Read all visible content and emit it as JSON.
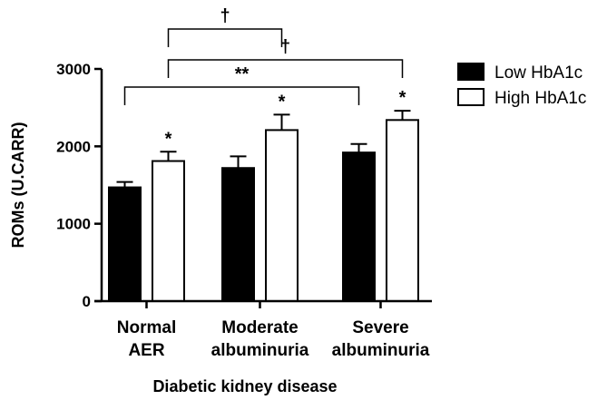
{
  "chart_data": {
    "type": "bar",
    "title": "",
    "xlabel": "Diabetic kidney disease",
    "ylabel": "ROMs (U.CARR)",
    "ylim": [
      0,
      3000
    ],
    "yticks": [
      0,
      1000,
      2000,
      3000
    ],
    "categories": [
      [
        "Normal",
        "AER"
      ],
      [
        "Moderate",
        "albuminuria"
      ],
      [
        "Severe",
        "albuminuria"
      ]
    ],
    "series": [
      {
        "name": "Low HbA1c",
        "color": "#000000",
        "values": [
          1470,
          1720,
          1920
        ],
        "errors": [
          70,
          150,
          110
        ],
        "markers": [
          "",
          "",
          ""
        ]
      },
      {
        "name": "High HbA1c",
        "color": "#ffffff",
        "values": [
          1810,
          2210,
          2340
        ],
        "errors": [
          120,
          200,
          120
        ],
        "markers": [
          "*",
          "*",
          "*"
        ]
      }
    ],
    "legend_position": "top-right",
    "annotations": [
      {
        "label": "†",
        "from": [
          0,
          1
        ],
        "to": [
          1,
          1
        ]
      },
      {
        "label": "†",
        "from": [
          0,
          1
        ],
        "to": [
          2,
          1
        ]
      },
      {
        "label": "**",
        "from": [
          0,
          0
        ],
        "to": [
          2,
          0
        ]
      }
    ]
  }
}
